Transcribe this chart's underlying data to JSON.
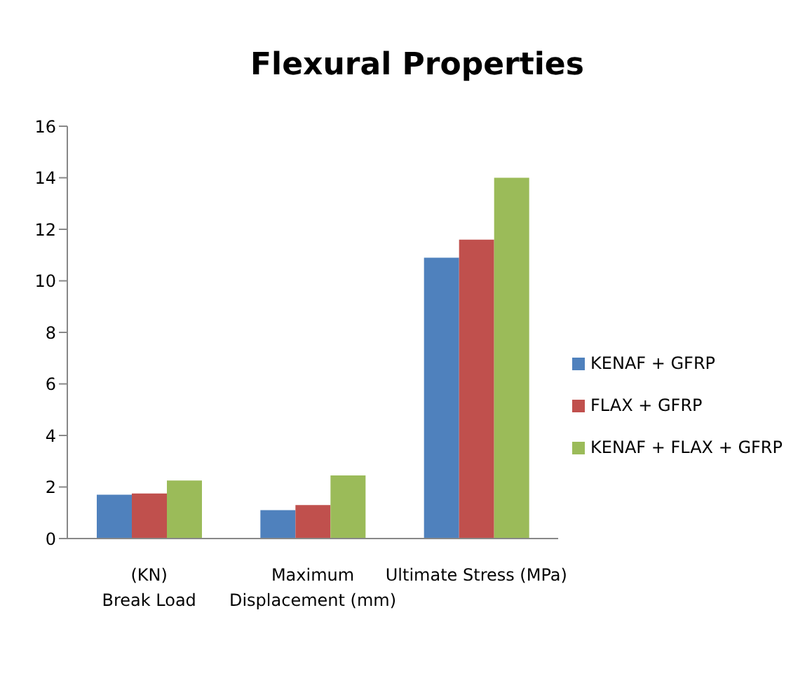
{
  "chart_data": {
    "type": "bar",
    "title": "Flexural Properties",
    "categories": [
      "(KN)\n\nBreak Load",
      "Maximum\nDisplacement (mm)",
      "Ultimate Stress (MPa)"
    ],
    "series": [
      {
        "name": "KENAF + GFRP",
        "color": "#4f81bd",
        "values": [
          1.7,
          1.1,
          10.9
        ]
      },
      {
        "name": "FLAX + GFRP",
        "color": "#c0504d",
        "values": [
          1.75,
          1.3,
          11.6
        ]
      },
      {
        "name": "KENAF + FLAX + GFRP",
        "color": "#9bbb59",
        "values": [
          2.25,
          2.45,
          14.0
        ]
      }
    ],
    "ylim": [
      0,
      16
    ],
    "yticks": [
      0,
      2,
      4,
      6,
      8,
      10,
      12,
      14,
      16
    ],
    "grid": false,
    "legend": "right"
  }
}
